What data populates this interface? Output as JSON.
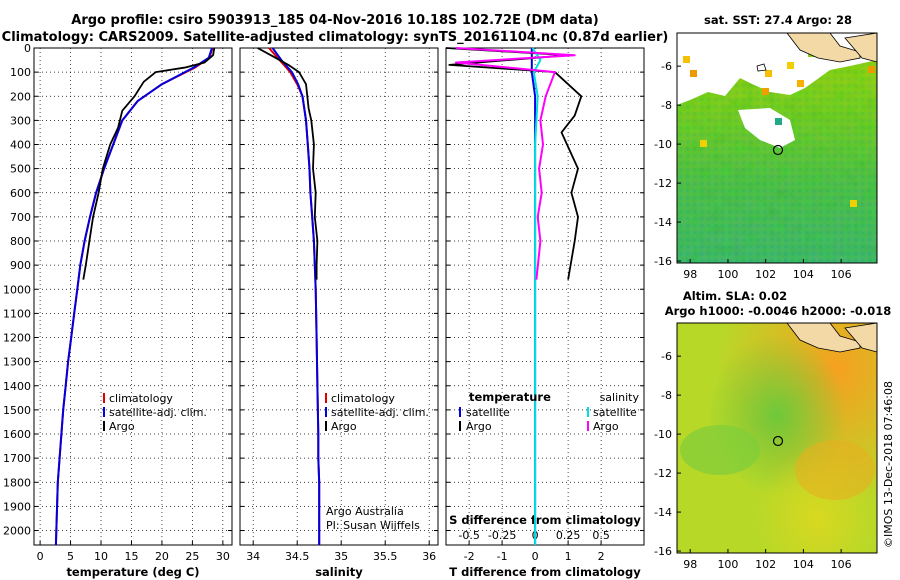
{
  "title_line1": "Argo profile: csiro 5903913_185 04-Nov-2016 10.18S 102.72E (DM data)",
  "title_line2": "Climatology: CARS2009. Satellite-adjusted climatology: synTS_20161104.nc (0.87d earlier)",
  "vertical_stamp": "©IMOS 13-Dec-2018 07:46:08",
  "colors": {
    "climatology": "#e00000",
    "satellite": "#0000e0",
    "argo": "#000000",
    "sal_satellite": "#00e0e0",
    "sal_argo": "#ff00ff"
  },
  "chart_data": [
    {
      "id": "temperature",
      "type": "line",
      "xlabel": "temperature (deg C)",
      "ylabel": "",
      "xlim": [
        -1,
        31.5
      ],
      "ylim": [
        2060,
        0
      ],
      "xticks": [
        "0",
        "5",
        "10",
        "15",
        "20",
        "25",
        "30"
      ],
      "xtick_values": [
        0,
        5,
        10,
        15,
        20,
        25,
        30
      ],
      "yticks": [
        "0",
        "100",
        "200",
        "300",
        "400",
        "500",
        "600",
        "700",
        "800",
        "900",
        "1000",
        "1100",
        "1200",
        "1300",
        "1400",
        "1500",
        "1600",
        "1700",
        "1800",
        "1900",
        "2000"
      ],
      "ytick_values": [
        0,
        100,
        200,
        300,
        400,
        500,
        600,
        700,
        800,
        900,
        1000,
        1100,
        1200,
        1300,
        1400,
        1500,
        1600,
        1700,
        1800,
        1900,
        2000
      ],
      "grid": true,
      "legend": [
        "climatology",
        "satellite-adj. clim.",
        "Argo"
      ],
      "series": [
        {
          "name": "climatology",
          "color": "#e00000",
          "x": [
            28.3,
            27.8,
            25.5,
            20,
            16,
            13.5,
            12,
            10.5,
            9.2,
            8.2,
            7.3,
            6.6,
            6.1,
            5.6,
            5.1,
            4.6,
            4.2,
            3.8,
            3.5,
            3.2,
            2.9,
            2.6
          ],
          "y": [
            0,
            40,
            80,
            150,
            220,
            300,
            400,
            500,
            600,
            700,
            800,
            900,
            1000,
            1100,
            1200,
            1300,
            1400,
            1500,
            1600,
            1700,
            1800,
            2060
          ]
        },
        {
          "name": "satellite-adj. clim.",
          "color": "#0000e0",
          "x": [
            28.2,
            27.7,
            25.3,
            20,
            16,
            13.5,
            12,
            10.5,
            9.2,
            8.2,
            7.3,
            6.6,
            6.1,
            5.6,
            5.1,
            4.6,
            4.2,
            3.8,
            3.5,
            3.2,
            2.9,
            2.6
          ],
          "y": [
            0,
            40,
            80,
            150,
            220,
            300,
            400,
            500,
            600,
            700,
            800,
            900,
            1000,
            1100,
            1200,
            1300,
            1400,
            1500,
            1600,
            1700,
            1800,
            2060
          ]
        },
        {
          "name": "Argo",
          "color": "#000000",
          "x": [
            28.6,
            28.4,
            27,
            24,
            19,
            17,
            15.5,
            13.5,
            12.8,
            11.5,
            10.3,
            9.6,
            8.7,
            8.1,
            7.5,
            7.1
          ],
          "y": [
            0,
            30,
            60,
            80,
            100,
            140,
            200,
            260,
            330,
            400,
            500,
            600,
            700,
            800,
            900,
            960
          ]
        }
      ]
    },
    {
      "id": "salinity",
      "type": "line",
      "xlabel": "salinity",
      "ylabel": "",
      "xlim": [
        33.85,
        36.1
      ],
      "ylim": [
        2060,
        0
      ],
      "xticks": [
        "34",
        "34.5",
        "35",
        "35.5",
        "36"
      ],
      "xtick_values": [
        34,
        34.5,
        35,
        35.5,
        36
      ],
      "grid": true,
      "legend": [
        "climatology",
        "satellite-adj. clim.",
        "Argo"
      ],
      "annotations": [
        "Argo Australia",
        "PI: Susan Wijffels"
      ],
      "series": [
        {
          "name": "climatology",
          "color": "#e00000",
          "x": [
            34.18,
            34.3,
            34.42,
            34.5,
            34.56,
            34.6,
            34.62,
            34.64,
            34.65,
            34.67,
            34.69,
            34.7,
            34.71,
            34.72,
            34.73,
            34.74,
            34.74,
            34.75,
            34.75,
            34.75
          ],
          "y": [
            0,
            50,
            100,
            150,
            200,
            300,
            400,
            500,
            600,
            700,
            800,
            900,
            1000,
            1200,
            1400,
            1600,
            1700,
            1800,
            1900,
            2060
          ]
        },
        {
          "name": "satellite-adj. clim.",
          "color": "#0000e0",
          "x": [
            34.22,
            34.32,
            34.44,
            34.51,
            34.56,
            34.6,
            34.62,
            34.64,
            34.65,
            34.67,
            34.69,
            34.7,
            34.71,
            34.72,
            34.73,
            34.74,
            34.74,
            34.75,
            34.75,
            34.75
          ],
          "y": [
            0,
            50,
            100,
            150,
            200,
            300,
            400,
            500,
            600,
            700,
            800,
            900,
            1000,
            1200,
            1400,
            1600,
            1700,
            1800,
            1900,
            2060
          ]
        },
        {
          "name": "Argo",
          "color": "#000000",
          "x": [
            34.05,
            34.2,
            34.4,
            34.52,
            34.6,
            34.63,
            34.66,
            34.69,
            34.68,
            34.71,
            34.7,
            34.73,
            34.72,
            34.72
          ],
          "y": [
            0,
            30,
            70,
            100,
            150,
            250,
            300,
            400,
            500,
            600,
            700,
            800,
            900,
            960
          ]
        }
      ]
    },
    {
      "id": "differences",
      "type": "line",
      "xlabel": "T difference from climatology",
      "x2label": "S difference from climatology",
      "ylabel": "",
      "xlim": [
        -2.7,
        3.3
      ],
      "x2lim": [
        -0.675,
        0.825
      ],
      "ylim": [
        2060,
        0
      ],
      "xticks": [
        "-2",
        "-1",
        "0",
        "1",
        "2"
      ],
      "xtick_values": [
        -2,
        -1,
        0,
        1,
        2
      ],
      "x2ticks": [
        "-0.5",
        "-0.25",
        "0",
        "0.25",
        "0.5"
      ],
      "x2tick_values": [
        -0.5,
        -0.25,
        0,
        0.25,
        0.5
      ],
      "grid": true,
      "legend_temperature": {
        "title": "temperature",
        "items": [
          "satellite",
          "Argo"
        ]
      },
      "legend_salinity": {
        "title": "salinity",
        "items": [
          "satellite",
          "Argo"
        ]
      },
      "series": [
        {
          "name": "temperature satellite",
          "axis": "T",
          "color": "#0000e0",
          "x": [
            -0.1,
            -0.1,
            0,
            0,
            0,
            0,
            0,
            0,
            0,
            0
          ],
          "y": [
            0,
            100,
            200,
            400,
            600,
            800,
            1000,
            1400,
            1800,
            2060
          ]
        },
        {
          "name": "temperature Argo",
          "axis": "T",
          "color": "#000000",
          "x": [
            -2.7,
            1.0,
            -2.6,
            0.6,
            1.4,
            1.2,
            0.8,
            1.3,
            1.1,
            1.3,
            1.2,
            1.0
          ],
          "y": [
            0,
            30,
            70,
            100,
            200,
            280,
            350,
            500,
            600,
            700,
            800,
            960
          ]
        },
        {
          "name": "salinity satellite",
          "axis": "S",
          "color": "#00e0e0",
          "x": [
            -0.02,
            0.04,
            -0.01,
            0.02,
            0.0,
            0.0,
            0.0,
            0.0,
            0.0,
            0.0
          ],
          "y": [
            0,
            50,
            100,
            200,
            400,
            600,
            1000,
            1400,
            1800,
            2060
          ]
        },
        {
          "name": "salinity Argo",
          "axis": "S",
          "color": "#ff00ff",
          "x": [
            -0.6,
            0.3,
            -0.6,
            0.15,
            0.08,
            0.04,
            0.06,
            0.03,
            0.05,
            0.02,
            0.04,
            0.01
          ],
          "y": [
            0,
            30,
            60,
            100,
            200,
            300,
            400,
            500,
            600,
            700,
            800,
            960
          ]
        }
      ]
    },
    {
      "id": "sst_map",
      "type": "heatmap",
      "title": "sat. SST: 27.4 Argo: 28",
      "xticks": [
        "98",
        "100",
        "102",
        "104",
        "106"
      ],
      "xtick_values": [
        98,
        100,
        102,
        104,
        106
      ],
      "yticks": [
        "-6",
        "-8",
        "-10",
        "-12",
        "-14",
        "-16"
      ],
      "ytick_values": [
        -6,
        -8,
        -10,
        -12,
        -14,
        -16
      ],
      "xlim": [
        97.3,
        107.9
      ],
      "ylim": [
        -16.1,
        -4.3
      ],
      "marker": {
        "lon": 102.72,
        "lat": -10.18
      }
    },
    {
      "id": "sla_map",
      "type": "heatmap",
      "title": "Altim. SLA: 0.02",
      "subtitle": "Argo h1000: -0.0046 h2000: -0.018",
      "xticks": [
        "98",
        "100",
        "102",
        "104",
        "106"
      ],
      "xtick_values": [
        98,
        100,
        102,
        104,
        106
      ],
      "yticks": [
        "-6",
        "-8",
        "-10",
        "-12",
        "-14",
        "-16"
      ],
      "ytick_values": [
        -6,
        -8,
        -10,
        -12,
        -14,
        -16
      ],
      "xlim": [
        97.3,
        107.9
      ],
      "ylim": [
        -16.1,
        -4.3
      ],
      "marker": {
        "lon": 102.72,
        "lat": -10.18
      }
    }
  ]
}
